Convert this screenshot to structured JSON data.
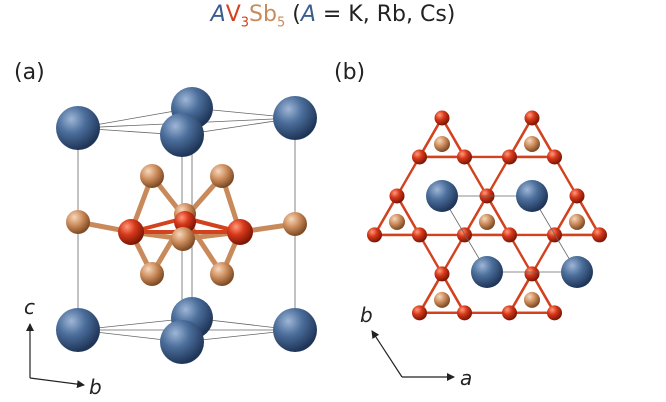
{
  "title": {
    "A": "A",
    "V": "V",
    "V_sub": "3",
    "Sb": "Sb",
    "Sb_sub": "5",
    "rest_open": " (",
    "rest_A": "A",
    "rest_tail": " = K, Rb, Cs)"
  },
  "panels": {
    "a_label": "(a)",
    "b_label": "(b)"
  },
  "axes": {
    "a": {
      "up": "c",
      "right": "b"
    },
    "b": {
      "diag": "b",
      "right": "a"
    }
  },
  "colors": {
    "A_atom": "#3a5e8f",
    "V_atom": "#d2421f",
    "Sb_atom": "#c98a5b",
    "bond": "#d2421f"
  }
}
